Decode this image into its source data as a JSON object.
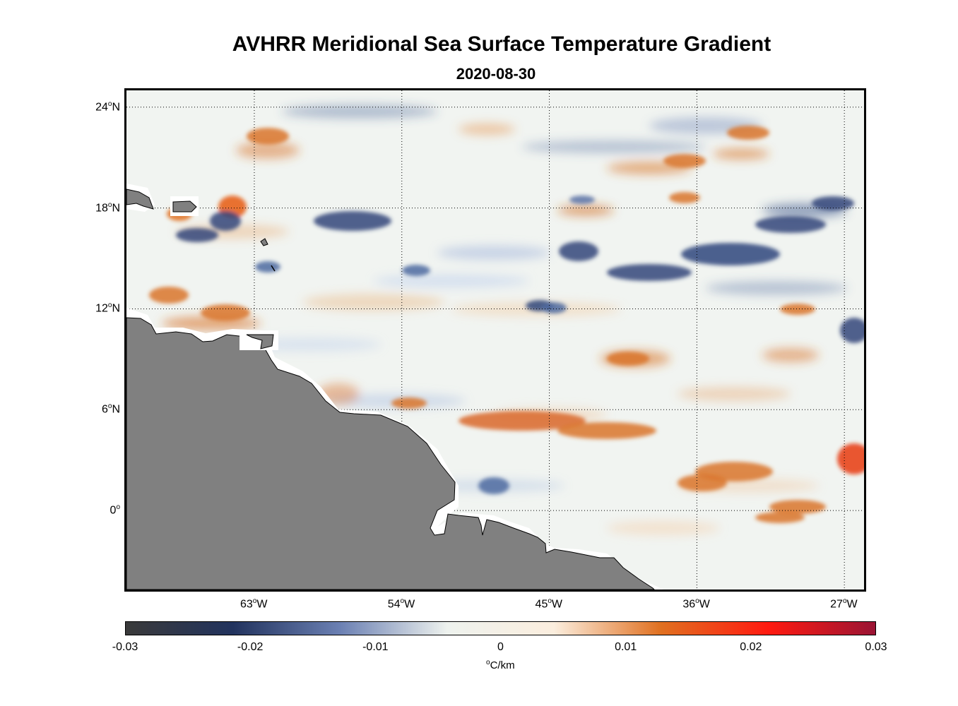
{
  "title": "AVHRR Meridional Sea Surface Temperature Gradient",
  "subtitle": "2020-08-30",
  "map": {
    "lon_range": [
      -70.8,
      -25.8
    ],
    "lat_range": [
      -4.7,
      25
    ],
    "lat_ticks": [
      {
        "value": 24,
        "label": "24",
        "hemi": "N"
      },
      {
        "value": 18,
        "label": "18",
        "hemi": "N"
      },
      {
        "value": 12,
        "label": "12",
        "hemi": "N"
      },
      {
        "value": 6,
        "label": "6",
        "hemi": "N"
      },
      {
        "value": 0,
        "label": "0",
        "hemi": ""
      }
    ],
    "lon_ticks": [
      {
        "value": -63,
        "label": "63",
        "hemi": "W"
      },
      {
        "value": -54,
        "label": "54",
        "hemi": "W"
      },
      {
        "value": -45,
        "label": "45",
        "hemi": "W"
      },
      {
        "value": -36,
        "label": "36",
        "hemi": "W"
      },
      {
        "value": -27,
        "label": "27",
        "hemi": "W"
      }
    ],
    "land_color": "#808080",
    "grid": "dotted"
  },
  "colorbar": {
    "ticks": [
      "-0.03",
      "-0.02",
      "-0.01",
      "0",
      "0.01",
      "0.02",
      "0.03"
    ],
    "unit_prefix": "o",
    "unit_main": "C/km",
    "colors": [
      "#3a3a3a",
      "#22335e",
      "#6b80b3",
      "#eef2ee",
      "#fbeede",
      "#e07020",
      "#ff1a10",
      "#9a1434"
    ]
  }
}
